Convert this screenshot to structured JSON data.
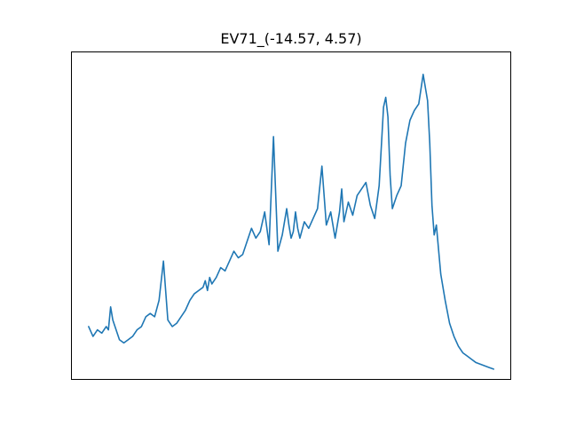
{
  "chart_data": {
    "type": "line",
    "title": "EV71_(-14.57, 4.57)",
    "xlabel": "",
    "ylabel": "",
    "x_ticks_visible": false,
    "y_ticks_visible": false,
    "grid": false,
    "legend": "none",
    "y_range_note": "axes unlabeled; values in relative units (0 = bottom of axes, 1 = top)",
    "xlim": [
      0,
      1
    ],
    "ylim": [
      0,
      1
    ],
    "series": [
      {
        "color": "#1f77b4",
        "x": [
          0.04,
          0.05,
          0.06,
          0.07,
          0.08,
          0.085,
          0.09,
          0.095,
          0.1,
          0.11,
          0.12,
          0.13,
          0.14,
          0.15,
          0.16,
          0.17,
          0.18,
          0.19,
          0.2,
          0.21,
          0.22,
          0.23,
          0.24,
          0.25,
          0.26,
          0.27,
          0.28,
          0.29,
          0.3,
          0.305,
          0.31,
          0.315,
          0.32,
          0.33,
          0.34,
          0.35,
          0.36,
          0.37,
          0.38,
          0.39,
          0.4,
          0.41,
          0.42,
          0.43,
          0.44,
          0.45,
          0.46,
          0.47,
          0.48,
          0.49,
          0.495,
          0.5,
          0.505,
          0.51,
          0.515,
          0.52,
          0.53,
          0.54,
          0.55,
          0.56,
          0.57,
          0.58,
          0.59,
          0.6,
          0.605,
          0.61,
          0.615,
          0.62,
          0.63,
          0.64,
          0.65,
          0.66,
          0.67,
          0.68,
          0.69,
          0.7,
          0.71,
          0.715,
          0.72,
          0.725,
          0.73,
          0.74,
          0.75,
          0.76,
          0.77,
          0.78,
          0.79,
          0.8,
          0.81,
          0.815,
          0.82,
          0.825,
          0.83,
          0.84,
          0.85,
          0.86,
          0.87,
          0.88,
          0.89,
          0.9,
          0.91,
          0.92,
          0.93,
          0.94,
          0.95,
          0.96
        ],
        "y": [
          0.16,
          0.13,
          0.15,
          0.14,
          0.16,
          0.15,
          0.22,
          0.18,
          0.16,
          0.12,
          0.11,
          0.12,
          0.13,
          0.15,
          0.16,
          0.19,
          0.2,
          0.19,
          0.24,
          0.36,
          0.18,
          0.16,
          0.17,
          0.19,
          0.21,
          0.24,
          0.26,
          0.27,
          0.28,
          0.3,
          0.27,
          0.31,
          0.29,
          0.31,
          0.34,
          0.33,
          0.36,
          0.39,
          0.37,
          0.38,
          0.42,
          0.46,
          0.43,
          0.45,
          0.51,
          0.41,
          0.74,
          0.39,
          0.44,
          0.52,
          0.47,
          0.43,
          0.45,
          0.51,
          0.46,
          0.43,
          0.48,
          0.46,
          0.49,
          0.52,
          0.65,
          0.47,
          0.51,
          0.43,
          0.47,
          0.51,
          0.58,
          0.48,
          0.54,
          0.5,
          0.56,
          0.58,
          0.6,
          0.53,
          0.49,
          0.59,
          0.83,
          0.86,
          0.8,
          0.62,
          0.52,
          0.56,
          0.59,
          0.72,
          0.79,
          0.82,
          0.84,
          0.93,
          0.85,
          0.72,
          0.53,
          0.44,
          0.47,
          0.32,
          0.24,
          0.17,
          0.13,
          0.1,
          0.08,
          0.07,
          0.06,
          0.05,
          0.045,
          0.04,
          0.035,
          0.03
        ]
      }
    ]
  }
}
